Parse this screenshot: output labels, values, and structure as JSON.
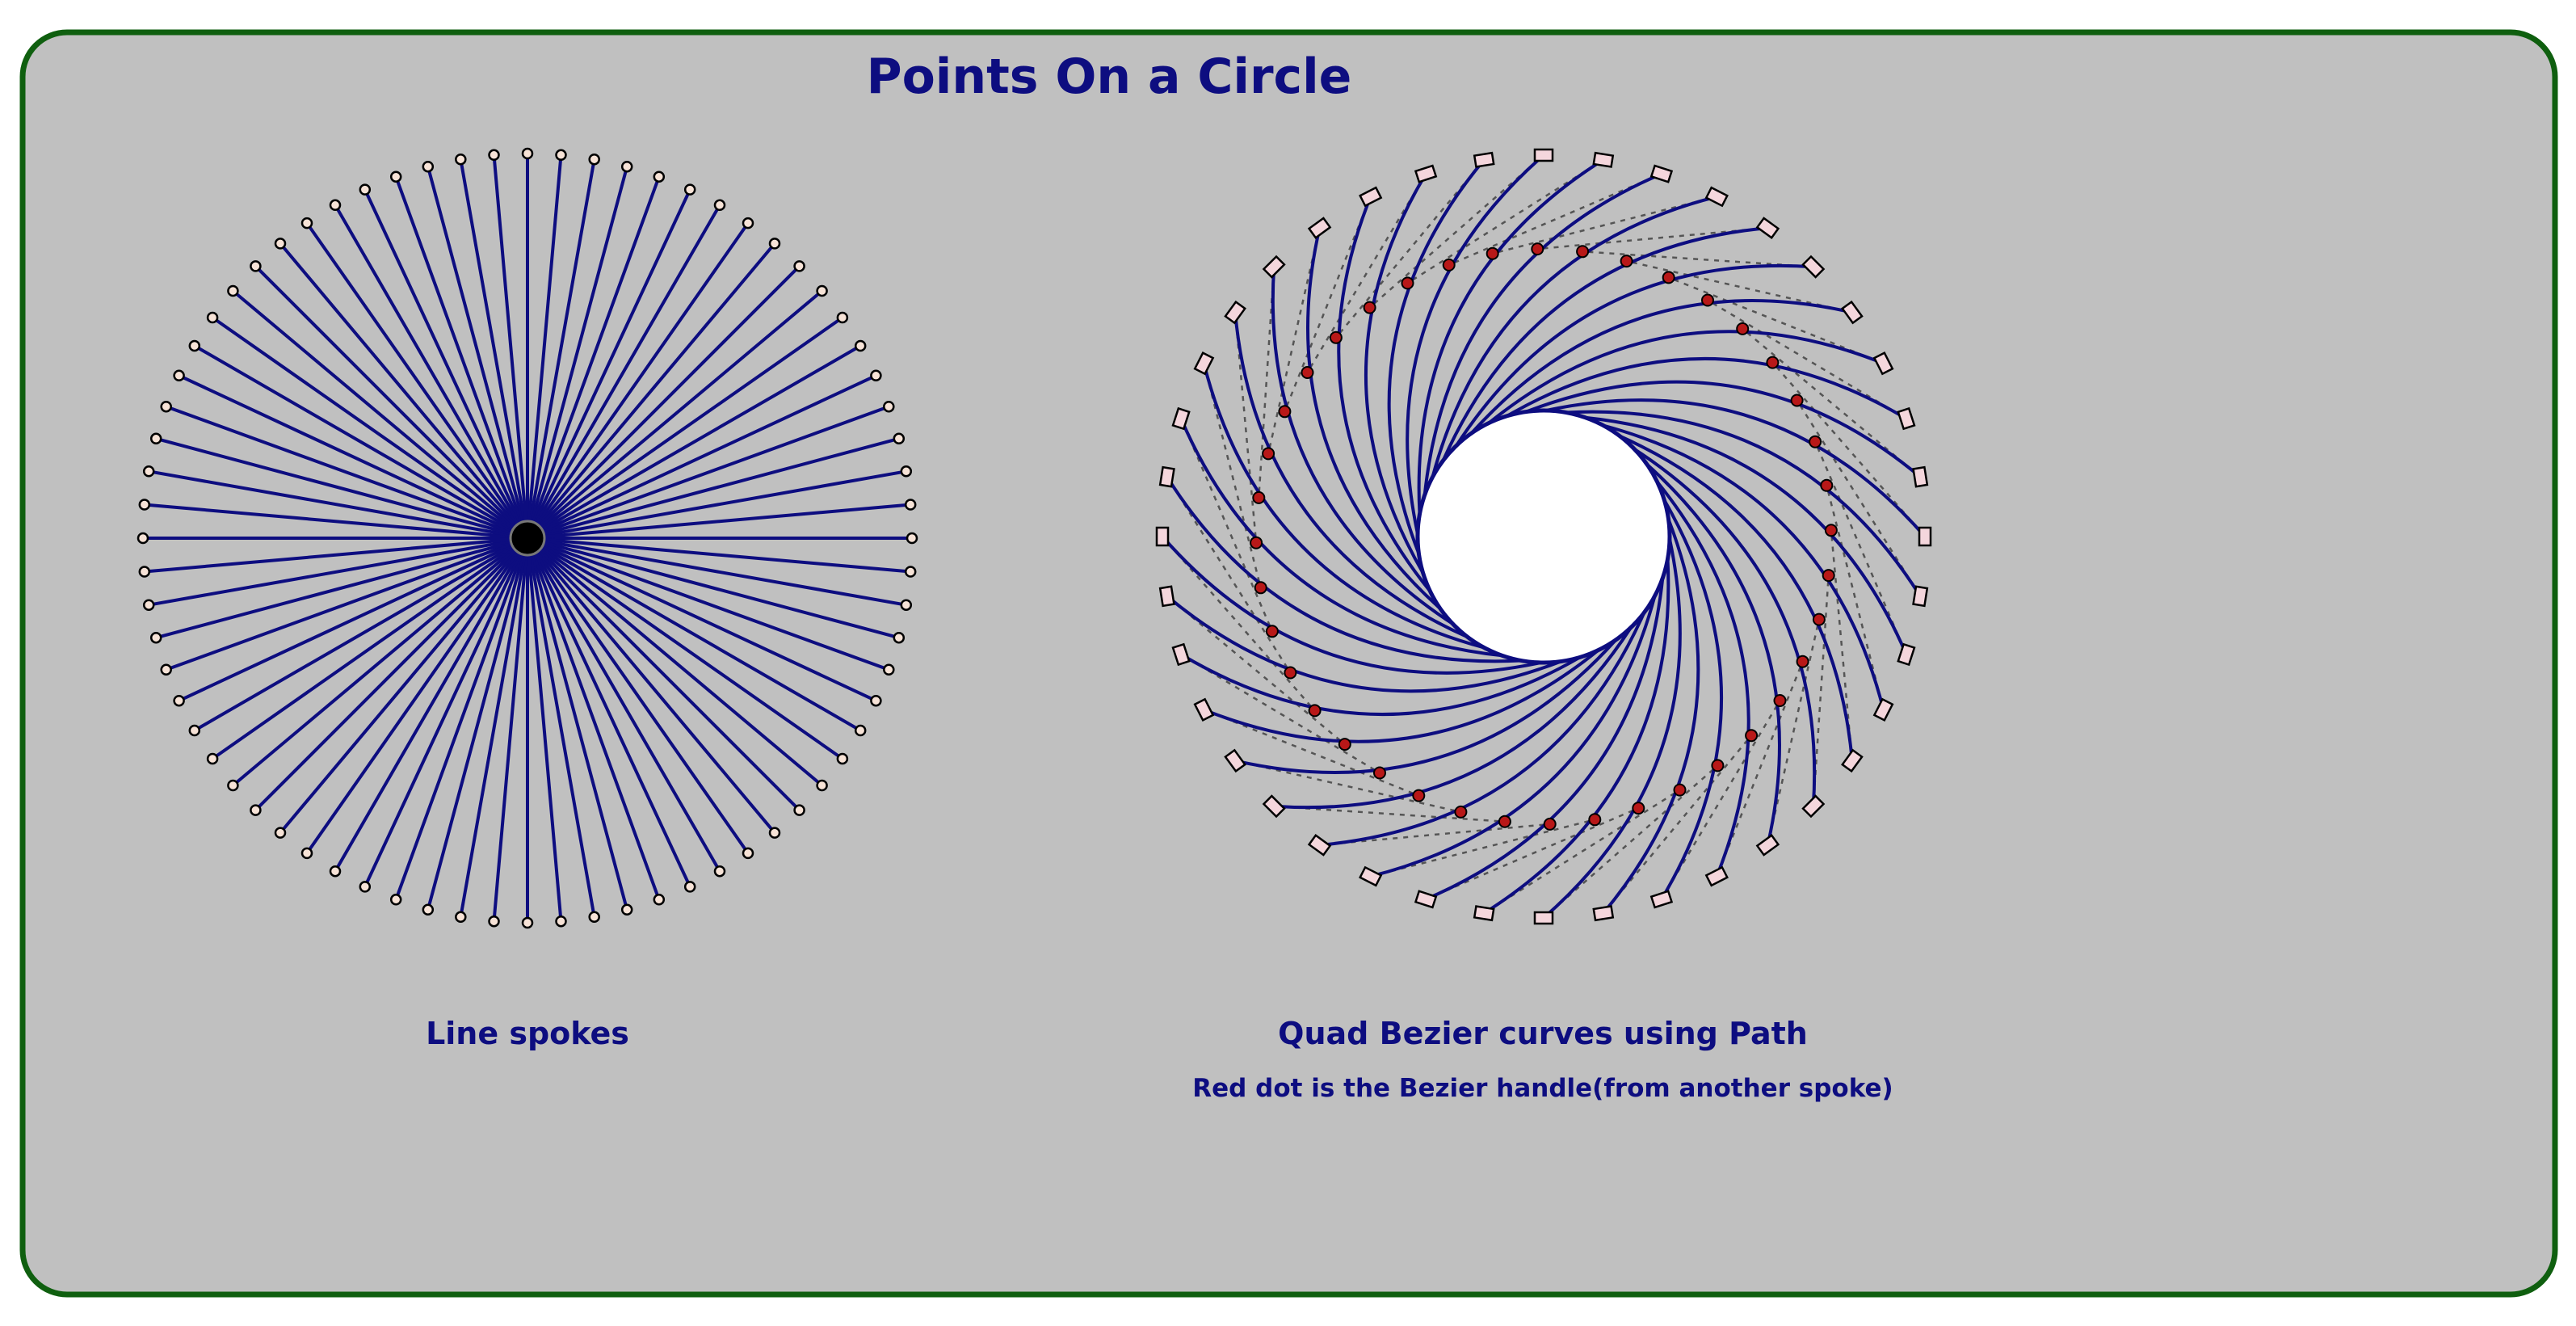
{
  "page": {
    "title": "Points On a Circle"
  },
  "left_figure": {
    "caption": "Line spokes",
    "spoke_count": 72
  },
  "right_figure": {
    "caption": "Quad Bezier curves using Path",
    "subcaption": "Red dot is the Bezier handle(from another spoke)",
    "spoke_count": 40
  },
  "colors": {
    "background": "#c0c0c0",
    "border": "#0f5f0f",
    "spoke": "#0d0d80",
    "handle_dot": "#b81818",
    "endpoint_marker_fill": "#f4d6dc",
    "endpoint_circle_fill": "#f7e3d7",
    "hub": "#000000",
    "dashed_guide": "#555555"
  }
}
